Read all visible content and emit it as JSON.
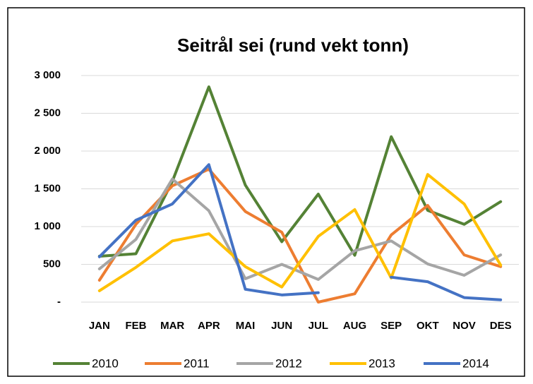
{
  "chart_data": {
    "type": "line",
    "title": "Seitrål sei (rund vekt tonn)",
    "categories": [
      "JAN",
      "FEB",
      "MAR",
      "APR",
      "MAI",
      "JUN",
      "JUL",
      "AUG",
      "SEP",
      "OKT",
      "NOV",
      "DES"
    ],
    "series": [
      {
        "name": "2010",
        "color": "#548235",
        "values": [
          607,
          640,
          1600,
          2850,
          1550,
          800,
          1430,
          620,
          2190,
          1215,
          1030,
          1330
        ]
      },
      {
        "name": "2011",
        "color": "#ed7d31",
        "values": [
          290,
          1030,
          1540,
          1760,
          1200,
          925,
          0,
          110,
          890,
          1280,
          625,
          470
        ]
      },
      {
        "name": "2012",
        "color": "#a5a5a5",
        "values": [
          440,
          830,
          1630,
          1210,
          310,
          500,
          300,
          680,
          810,
          505,
          355,
          625
        ]
      },
      {
        "name": "2013",
        "color": "#ffc000",
        "values": [
          150,
          460,
          810,
          905,
          470,
          200,
          870,
          1225,
          320,
          1690,
          1300,
          490
        ]
      },
      {
        "name": "2014",
        "color": "#4472c4",
        "values": [
          600,
          1085,
          1300,
          1820,
          170,
          95,
          125,
          null,
          330,
          270,
          60,
          30
        ]
      }
    ],
    "ylim": [
      0,
      3000
    ],
    "yticks": [
      {
        "value": 0,
        "label": "-"
      },
      500,
      {
        "value": 1000,
        "label": "1 000"
      },
      {
        "value": 1500,
        "label": "1 500"
      },
      {
        "value": 2000,
        "label": "2 000"
      },
      {
        "value": 2500,
        "label": "2 500"
      },
      {
        "value": 3000,
        "label": "3 000"
      }
    ],
    "grid": true,
    "legend": "bottom"
  }
}
